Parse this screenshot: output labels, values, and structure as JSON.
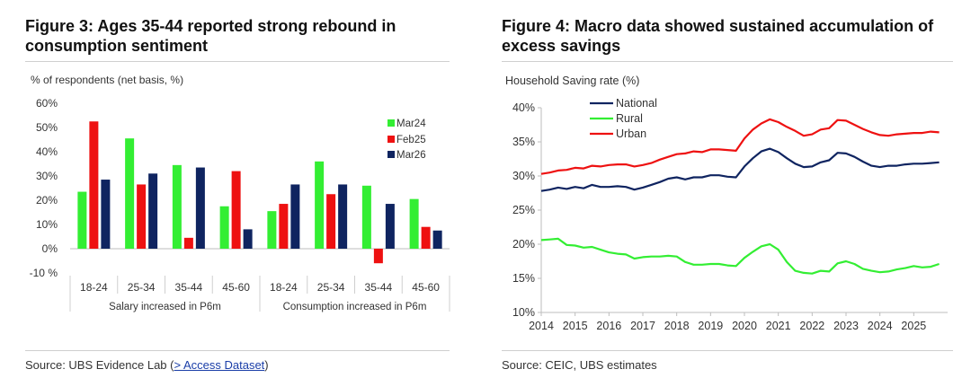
{
  "chart_data": [
    {
      "type": "bar",
      "title": "Figure 3: Ages 35-44 reported strong rebound in consumption sentiment",
      "ylabel": "% of respondents (net basis, %)",
      "ylim": [
        -10,
        60
      ],
      "yticks": [
        "-10 %",
        "0%",
        "10%",
        "20%",
        "30%",
        "40%",
        "50%",
        "60%"
      ],
      "grid": false,
      "legend_position": "top-right",
      "categories": [
        "18-24",
        "25-34",
        "35-44",
        "45-60",
        "18-24",
        "25-34",
        "35-44",
        "45-60"
      ],
      "groups": [
        {
          "label": "Salary increased in P6m",
          "span": 4
        },
        {
          "label": "Consumption increased in P6m",
          "span": 4
        }
      ],
      "series": [
        {
          "name": "Mar24",
          "color": "#33ee33",
          "values": [
            23.5,
            45.5,
            34.5,
            17.5,
            15.5,
            36,
            26,
            20.5
          ]
        },
        {
          "name": "Feb25",
          "color": "#ee1111",
          "values": [
            52.5,
            26.5,
            4.5,
            32,
            18.5,
            22.5,
            -6,
            9
          ]
        },
        {
          "name": "Mar26",
          "color": "#0f2460",
          "values": [
            28.5,
            31,
            33.5,
            8,
            26.5,
            26.5,
            18.5,
            7.5
          ]
        }
      ]
    },
    {
      "type": "line",
      "title": "Figure 4: Macro data showed sustained accumulation of excess savings",
      "ylabel": "Household Saving rate (%)",
      "ylim": [
        10,
        40
      ],
      "xlim": [
        2014,
        2026
      ],
      "yticks": [
        "10%",
        "15%",
        "20%",
        "25%",
        "30%",
        "35%",
        "40%"
      ],
      "xticks": [
        "2014",
        "2015",
        "2016",
        "2017",
        "2018",
        "2019",
        "2020",
        "2021",
        "2022",
        "2023",
        "2024",
        "2025"
      ],
      "grid": false,
      "legend_position": "top-left",
      "x": [
        2014,
        2014.25,
        2014.5,
        2014.75,
        2015,
        2015.25,
        2015.5,
        2015.75,
        2016,
        2016.25,
        2016.5,
        2016.75,
        2017,
        2017.25,
        2017.5,
        2017.75,
        2018,
        2018.25,
        2018.5,
        2018.75,
        2019,
        2019.25,
        2019.5,
        2019.75,
        2020,
        2020.25,
        2020.5,
        2020.75,
        2021,
        2021.25,
        2021.5,
        2021.75,
        2022,
        2022.25,
        2022.5,
        2022.75,
        2023,
        2023.25,
        2023.5,
        2023.75,
        2024,
        2024.25,
        2024.5,
        2024.75,
        2025,
        2025.25,
        2025.5,
        2025.75
      ],
      "series": [
        {
          "name": "National",
          "color": "#0f2460",
          "values": [
            27.8,
            28.0,
            28.3,
            28.1,
            28.4,
            28.2,
            28.7,
            28.4,
            28.4,
            28.5,
            28.4,
            28.0,
            28.3,
            28.7,
            29.1,
            29.6,
            29.8,
            29.5,
            29.8,
            29.8,
            30.1,
            30.1,
            29.9,
            29.8,
            31.4,
            32.6,
            33.6,
            34.0,
            33.5,
            32.6,
            31.8,
            31.3,
            31.4,
            32.0,
            32.3,
            33.4,
            33.3,
            32.8,
            32.1,
            31.5,
            31.3,
            31.5,
            31.5,
            31.7,
            31.8,
            31.8,
            31.9,
            32.0
          ]
        },
        {
          "name": "Rural",
          "color": "#33ee33",
          "values": [
            20.6,
            20.7,
            20.8,
            19.9,
            19.8,
            19.5,
            19.6,
            19.2,
            18.8,
            18.6,
            18.5,
            17.9,
            18.1,
            18.2,
            18.2,
            18.3,
            18.2,
            17.4,
            17.0,
            17.0,
            17.1,
            17.1,
            16.9,
            16.8,
            18.0,
            18.9,
            19.7,
            20.0,
            19.2,
            17.4,
            16.1,
            15.8,
            15.7,
            16.1,
            16.0,
            17.2,
            17.5,
            17.1,
            16.4,
            16.1,
            15.9,
            16.0,
            16.3,
            16.5,
            16.8,
            16.6,
            16.7,
            17.1
          ]
        },
        {
          "name": "Urban",
          "color": "#ee1111",
          "values": [
            30.3,
            30.5,
            30.8,
            30.9,
            31.2,
            31.1,
            31.5,
            31.4,
            31.6,
            31.7,
            31.7,
            31.4,
            31.6,
            31.9,
            32.4,
            32.8,
            33.2,
            33.3,
            33.6,
            33.5,
            33.9,
            33.9,
            33.8,
            33.7,
            35.5,
            36.8,
            37.7,
            38.3,
            37.9,
            37.2,
            36.6,
            35.9,
            36.1,
            36.8,
            37.0,
            38.2,
            38.1,
            37.5,
            36.9,
            36.4,
            36.0,
            35.9,
            36.1,
            36.2,
            36.3,
            36.3,
            36.5,
            36.4
          ]
        }
      ]
    }
  ],
  "sources": {
    "left_prefix": "Source:  UBS Evidence Lab (",
    "left_link": "> Access Dataset",
    "left_suffix": ")",
    "right": "Source:  CEIC, UBS estimates"
  }
}
